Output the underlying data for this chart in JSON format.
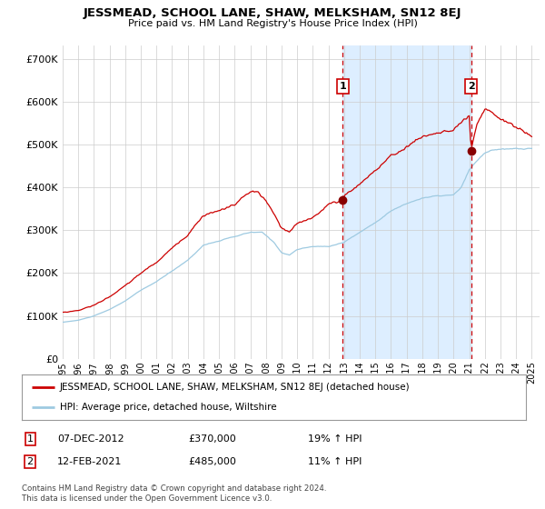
{
  "title": "JESSMEAD, SCHOOL LANE, SHAW, MELKSHAM, SN12 8EJ",
  "subtitle": "Price paid vs. HM Land Registry's House Price Index (HPI)",
  "ylabel_ticks": [
    "£0",
    "£100K",
    "£200K",
    "£300K",
    "£400K",
    "£500K",
    "£600K",
    "£700K"
  ],
  "ytick_values": [
    0,
    100000,
    200000,
    300000,
    400000,
    500000,
    600000,
    700000
  ],
  "ylim": [
    0,
    730000
  ],
  "xlim_start": 1995.0,
  "xlim_end": 2025.5,
  "hpi_color": "#9ecae1",
  "price_color": "#cc0000",
  "shade_color": "#ddeeff",
  "marker1_x": 2012.92,
  "marker1_y": 370000,
  "marker2_x": 2021.12,
  "marker2_y": 485000,
  "dashed_x1": 2012.92,
  "dashed_x2": 2021.12,
  "legend_label_red": "JESSMEAD, SCHOOL LANE, SHAW, MELKSHAM, SN12 8EJ (detached house)",
  "legend_label_blue": "HPI: Average price, detached house, Wiltshire",
  "note1_date": "07-DEC-2012",
  "note1_price": "£370,000",
  "note1_hpi": "19% ↑ HPI",
  "note2_date": "12-FEB-2021",
  "note2_price": "£485,000",
  "note2_hpi": "11% ↑ HPI",
  "copyright": "Contains HM Land Registry data © Crown copyright and database right 2024.\nThis data is licensed under the Open Government Licence v3.0.",
  "background_color": "#ffffff",
  "grid_color": "#cccccc"
}
